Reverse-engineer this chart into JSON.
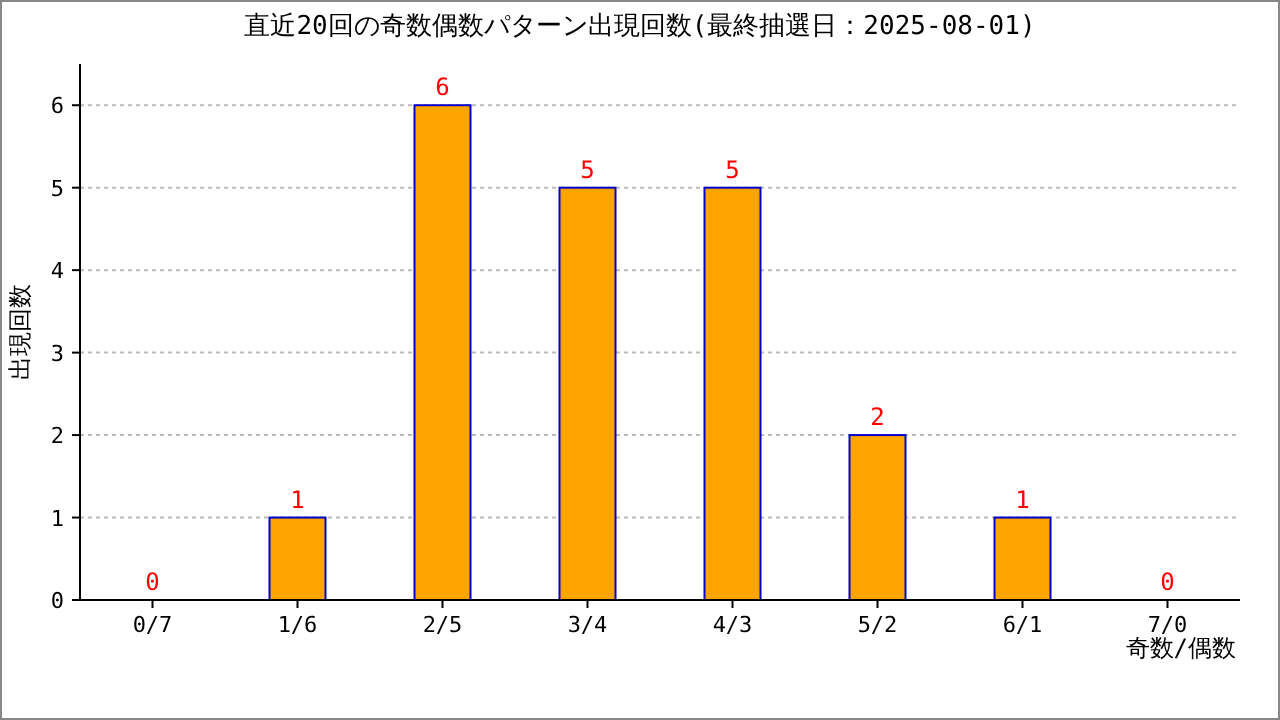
{
  "chart_data": {
    "type": "bar",
    "title": "直近20回の奇数偶数パターン出現回数(最終抽選日：2025-08-01)",
    "xlabel": "奇数/偶数",
    "ylabel": "出現回数",
    "categories": [
      "0/7",
      "1/6",
      "2/5",
      "3/4",
      "4/3",
      "5/2",
      "6/1",
      "7/0"
    ],
    "values": [
      0,
      1,
      6,
      5,
      5,
      2,
      1,
      0
    ],
    "color": "#ffa500",
    "ylim": [
      0,
      6.5
    ],
    "yticks": [
      0,
      1,
      2,
      3,
      4,
      5,
      6
    ],
    "grid": "y",
    "data_labels": true
  }
}
